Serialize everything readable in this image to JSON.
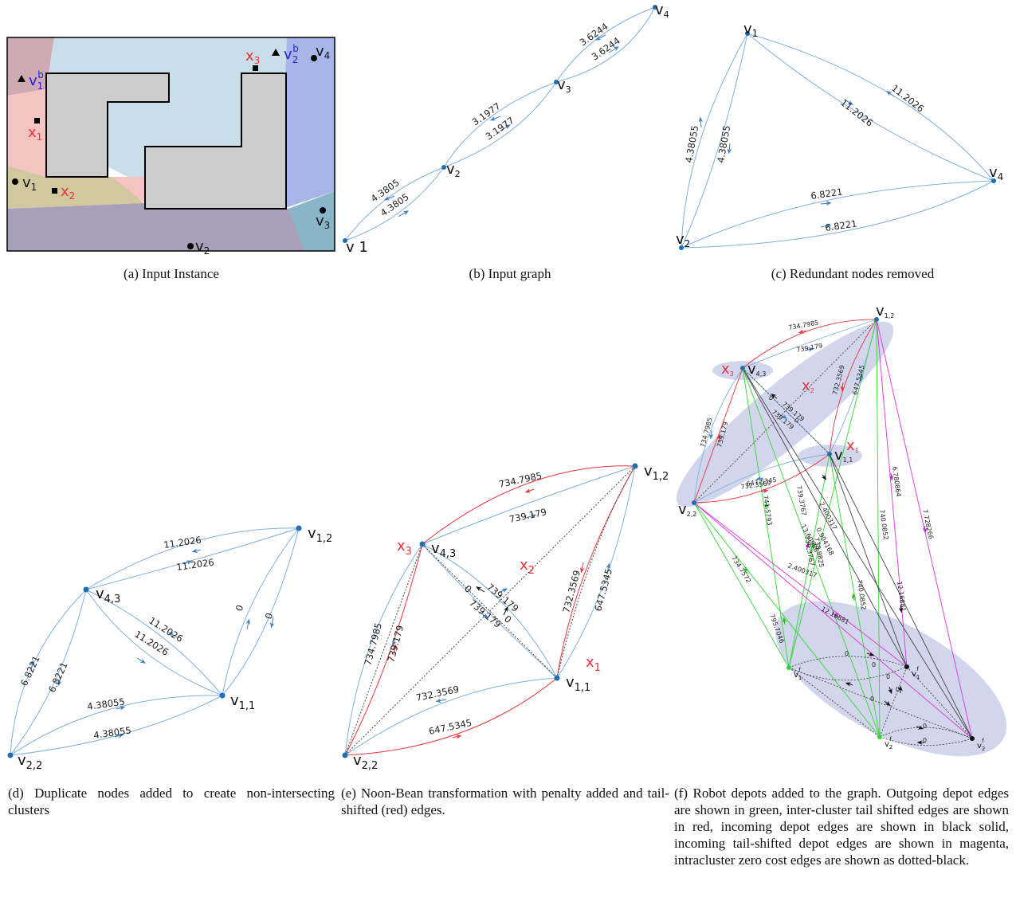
{
  "captions": {
    "a": "(a) Input Instance",
    "b": "(b) Input graph",
    "c": "(c) Redundant nodes removed",
    "d": "(d) Duplicate nodes added to create non-intersecting clusters",
    "e": "(e) Noon-Bean transformation with penalty added and tail-shifted (red) edges.",
    "f": "(f) Robot depots added to the graph. Outgoing depot edges are shown in green, inter-cluster tail shifted edges are shown in red, incoming depot edges are shown in black solid, incoming tail-shifted depot edges are shown in magenta, intracluster zero cost edges are shown as dotted-black."
  },
  "colors": {
    "edge_blue": "#7fb0dc",
    "node_blue": "#1f6fb4",
    "red": "#e8333a",
    "green": "#33d633",
    "magenta": "#dd33dd",
    "cluster": "#c9cfe9",
    "obstacle": "#cccccc"
  },
  "panel_a": {
    "labels": {
      "v1": "v",
      "v1_sub": "1",
      "v2": "v",
      "v2_sub": "2",
      "v3": "v",
      "v3_sub": "3",
      "v4": "v",
      "v4_sub": "4",
      "x1": "x",
      "x1_sub": "1",
      "x2": "x",
      "x2_sub": "2",
      "x3": "x",
      "x3_sub": "3",
      "vb1": "v",
      "vb1_sub": "1",
      "vb1_sup": "b",
      "vb2": "v",
      "vb2_sub": "2",
      "vb2_sup": "b"
    }
  },
  "panel_b": {
    "nodes": {
      "v1": "v 1",
      "v2": "v",
      "v2_sub": "2",
      "v3": "v",
      "v3_sub": "3",
      "v4": "v",
      "v4_sub": "4"
    },
    "weights": {
      "w12a": "4.3805",
      "w12b": "4.3805",
      "w23a": "3.1977",
      "w23b": "3.1977",
      "w34a": "3.6244",
      "w34b": "3.6244"
    }
  },
  "panel_c": {
    "nodes": {
      "v1": "v",
      "v1_sub": "1",
      "v2": "v",
      "v2_sub": "2",
      "v4": "v",
      "v4_sub": "4"
    },
    "weights": {
      "w14a": "11.2026",
      "w14b": "11.2026",
      "w12a": "4.38055",
      "w12b": "4.38055",
      "w24a": "6.8221",
      "w24b": "6.8221"
    }
  },
  "panel_d": {
    "nodes": {
      "v12": "v",
      "v12_sub": "1,2",
      "v43": "v",
      "v43_sub": "4,3",
      "v11": "v",
      "v11_sub": "1,1",
      "v22": "v",
      "v22_sub": "2,2"
    },
    "weights": {
      "a": "11.2026",
      "b": "11.2026",
      "c": "11.2026",
      "d": "11.2026",
      "e": "0",
      "f": "0",
      "g": "6.8221",
      "h": "6.8221",
      "i": "4.38055",
      "j": "4.38055"
    }
  },
  "panel_e": {
    "nodes": {
      "v12": "v",
      "v12_sub": "1,2",
      "v43": "v",
      "v43_sub": "4,3",
      "v11": "v",
      "v11_sub": "1,1",
      "v22": "v",
      "v22_sub": "2,2",
      "x1": "x",
      "x1_sub": "1",
      "x2": "x",
      "x2_sub": "2",
      "x3": "x",
      "x3_sub": "3"
    },
    "weights": {
      "a": "734.7985",
      "b": "739.179",
      "c": "732.3569",
      "d": "647.5345",
      "e": "739.179",
      "f": "739.179",
      "g": "0",
      "h": "0",
      "i": "734.7985",
      "j": "739.179",
      "k": "732.3569",
      "l": "647.5345"
    }
  },
  "panel_f": {
    "nodes": {
      "v12": "v",
      "v12_sub": "1,2",
      "v43": "v",
      "v43_sub": "4,3",
      "v11": "v",
      "v11_sub": "1,1",
      "v22": "v",
      "v22_sub": "2,2",
      "x1": "x",
      "x1_sub": "1",
      "x2": "x",
      "x2_sub": "2",
      "x3": "x",
      "x3_sub": "3",
      "d1a": "v",
      "d1a_sub": "1",
      "d1a_sup": "f",
      "d1b": "v",
      "d1b_sub": "1",
      "d1b_sup": "f",
      "d2a": "v",
      "d2a_sub": "2",
      "d2a_sup": "f",
      "d2b": "v",
      "d2b_sub": "2",
      "d2b_sup": "f"
    },
    "weights": {
      "a": "734.7985",
      "b": "739.179",
      "c": "732.3569",
      "d": "647.5345",
      "e": "739.179",
      "f": "739.179",
      "g": "0",
      "h": "0",
      "i": "734.7985",
      "j": "739.179",
      "k": "732.3569",
      "l": "647.5345",
      "m": "6.780864",
      "n": "7.728266",
      "o": "739.3767",
      "p": "741.5793",
      "q": "13.60986",
      "r": "2.400317",
      "s": "0.904168",
      "t": "740.0852",
      "u": "734.7572",
      "v": "730.3767",
      "w": "738.9825",
      "x": "2.400317",
      "y": "740.0852",
      "z": "12.16881",
      "aa": "12.16881",
      "ab": "795.7046",
      "z1": "0",
      "z2": "0",
      "z3": "0",
      "z4": "0",
      "z5": "0",
      "z6": "0",
      "z7": "0"
    }
  }
}
